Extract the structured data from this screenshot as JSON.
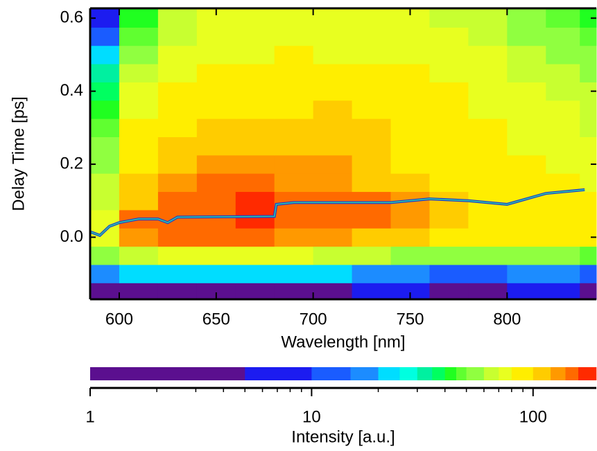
{
  "chart_data": {
    "type": "heatmap",
    "xlabel": "Wavelength [nm]",
    "ylabel": "Delay Time [ps]",
    "clabel": "Intensity [a.u.]",
    "xlim": [
      585,
      846
    ],
    "ylim": [
      -0.17,
      0.627
    ],
    "xticks": [
      600,
      650,
      700,
      750,
      800
    ],
    "yticks": [
      {
        "value": 0,
        "label": "0.0"
      },
      0.2,
      0.4,
      0.6
    ],
    "x": [
      590,
      610,
      630,
      650,
      670,
      690,
      710,
      730,
      750,
      770,
      790,
      810,
      830,
      845
    ],
    "y": [
      -0.15,
      -0.1,
      -0.05,
      0,
      0.05,
      0.1,
      0.15,
      0.2,
      0.25,
      0.3,
      0.35,
      0.4,
      0.45,
      0.5,
      0.55,
      0.6
    ],
    "z": [
      [
        3,
        4,
        4,
        4,
        4,
        4,
        3,
        5,
        6,
        3,
        4,
        6,
        5,
        4
      ],
      [
        15,
        20,
        22,
        22,
        22,
        22,
        20,
        18,
        15,
        14,
        12,
        15,
        15,
        12
      ],
      [
        55,
        65,
        70,
        72,
        72,
        70,
        68,
        62,
        58,
        55,
        50,
        55,
        52,
        48
      ],
      [
        75,
        130,
        150,
        150,
        150,
        130,
        120,
        115,
        100,
        95,
        92,
        90,
        85,
        80
      ],
      [
        70,
        140,
        155,
        158,
        160,
        150,
        150,
        140,
        120,
        105,
        95,
        90,
        85,
        80
      ],
      [
        65,
        110,
        150,
        155,
        162,
        148,
        150,
        140,
        120,
        100,
        90,
        88,
        85,
        80
      ],
      [
        60,
        100,
        130,
        150,
        158,
        130,
        135,
        110,
        100,
        92,
        85,
        85,
        82,
        78
      ],
      [
        55,
        90,
        110,
        125,
        130,
        125,
        120,
        100,
        95,
        85,
        82,
        80,
        78,
        75
      ],
      [
        50,
        85,
        100,
        110,
        115,
        118,
        115,
        105,
        95,
        85,
        80,
        78,
        75,
        70
      ],
      [
        45,
        80,
        95,
        105,
        108,
        110,
        112,
        108,
        92,
        85,
        80,
        75,
        72,
        68
      ],
      [
        40,
        75,
        88,
        92,
        95,
        98,
        100,
        95,
        88,
        82,
        78,
        72,
        70,
        65
      ],
      [
        35,
        70,
        82,
        85,
        88,
        90,
        92,
        90,
        85,
        80,
        75,
        70,
        65,
        60
      ],
      [
        30,
        60,
        75,
        80,
        82,
        85,
        85,
        80,
        80,
        78,
        72,
        65,
        60,
        55
      ],
      [
        20,
        50,
        70,
        75,
        78,
        80,
        78,
        76,
        75,
        74,
        70,
        60,
        55,
        50
      ],
      [
        12,
        45,
        65,
        72,
        75,
        78,
        76,
        74,
        72,
        70,
        65,
        55,
        50,
        45
      ],
      [
        8,
        40,
        62,
        70,
        72,
        75,
        74,
        72,
        70,
        68,
        60,
        50,
        45,
        40
      ]
    ],
    "peak": {
      "x": [
        585,
        590,
        595,
        600,
        610,
        620,
        625,
        630,
        680,
        681,
        690,
        700,
        740,
        760,
        780,
        800,
        820,
        840
      ],
      "y": [
        0.015,
        0.005,
        0.03,
        0.04,
        0.05,
        0.05,
        0.04,
        0.055,
        0.057,
        0.09,
        0.095,
        0.095,
        0.095,
        0.105,
        0.1,
        0.09,
        0.12,
        0.13
      ],
      "color": "#30c8a0",
      "edge": "#1a3ad0"
    },
    "levels": [
      1,
      5,
      10,
      15,
      20,
      25,
      30,
      35,
      40,
      45,
      50,
      60,
      70,
      80,
      100,
      120,
      140,
      160,
      193
    ],
    "colors": [
      "#5b0f8f",
      "#1c1cf0",
      "#1a5cff",
      "#1c8cff",
      "#00ddff",
      "#00ffe0",
      "#00f0a0",
      "#00ff60",
      "#20ff20",
      "#60ff30",
      "#90ff40",
      "#c8ff30",
      "#e8ff20",
      "#ffee00",
      "#ffcc00",
      "#ff9900",
      "#ff6a00",
      "#ff2a00"
    ],
    "clog": true,
    "clim": [
      1,
      193
    ],
    "cticks": [
      1,
      10,
      100
    ],
    "cminor": [
      2,
      3,
      4,
      5,
      6,
      7,
      8,
      9,
      20,
      30,
      40,
      50,
      60,
      70,
      80,
      90
    ]
  }
}
